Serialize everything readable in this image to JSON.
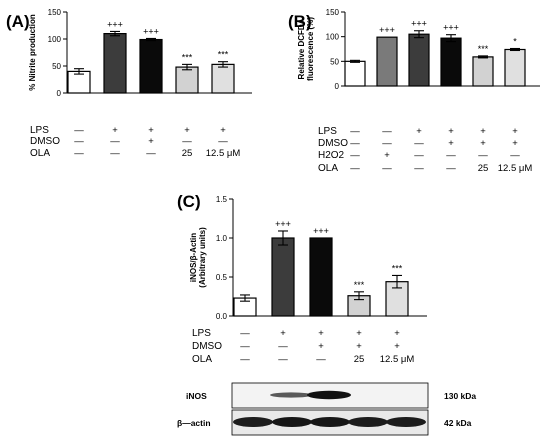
{
  "chart_data": [
    {
      "type": "bar",
      "panel": "(A)",
      "ylabel": "% Nitrite production",
      "ylim": [
        0,
        150
      ],
      "yticks": [
        "0",
        "50",
        "100",
        "150"
      ],
      "fills": [
        "#ffffff",
        "#3c3c3c",
        "#0a0a0a",
        "#d2d2d2",
        "#e0e0e0"
      ],
      "values": [
        40,
        110,
        99,
        48,
        53
      ],
      "errors": [
        5,
        4,
        2,
        5,
        5
      ],
      "significance": [
        "",
        "+++",
        "+++",
        "***",
        "***"
      ],
      "conditions": [
        {
          "label": "LPS",
          "cells": [
            "—",
            "+",
            "+",
            "+",
            "+"
          ]
        },
        {
          "label": "DMSO",
          "cells": [
            "—",
            "—",
            "+",
            "—",
            "—"
          ]
        },
        {
          "label": "OLA",
          "cells": [
            "—",
            "—",
            "—",
            "25",
            "12.5 μM"
          ]
        }
      ]
    },
    {
      "type": "bar",
      "panel": "(B)",
      "ylabel": "Relative DCFDA fluorescence (%)",
      "ylabel_lines": [
        "Relative DCFDA",
        "fluorescence (%)"
      ],
      "ylim": [
        0,
        150
      ],
      "yticks": [
        "0",
        "50",
        "100",
        "150"
      ],
      "fills": [
        "#ffffff",
        "#7a7a7a",
        "#3c3c3c",
        "#0a0a0a",
        "#d2d2d2",
        "#e0e0e0"
      ],
      "values": [
        50,
        99,
        105,
        97,
        59,
        74
      ],
      "errors": [
        2,
        0,
        7,
        7,
        2,
        2
      ],
      "significance": [
        "",
        "+++",
        "+++",
        "+++",
        "***",
        "*"
      ],
      "conditions": [
        {
          "label": "LPS",
          "cells": [
            "—",
            "—",
            "+",
            "+",
            "+",
            "+"
          ]
        },
        {
          "label": "DMSO",
          "cells": [
            "—",
            "—",
            "—",
            "+",
            "+",
            "+"
          ]
        },
        {
          "label": "H2O2",
          "cells": [
            "—",
            "+",
            "—",
            "—",
            "—",
            "—"
          ]
        },
        {
          "label": "OLA",
          "cells": [
            "—",
            "—",
            "—",
            "—",
            "25",
            "12.5 μM"
          ]
        }
      ]
    },
    {
      "type": "bar",
      "panel": "(C)",
      "ylabel": "iNOS/β-Actin (Arbitrary units)",
      "ylabel_lines": [
        "iNOS/β-Actin",
        "(Arbitrary units)"
      ],
      "ylim": [
        0,
        1.5
      ],
      "yticks": [
        "0.0",
        "0.5",
        "1.0",
        "1.5"
      ],
      "fills": [
        "#ffffff",
        "#3c3c3c",
        "#0a0a0a",
        "#d2d2d2",
        "#e0e0e0"
      ],
      "values": [
        0.23,
        1.0,
        1.0,
        0.26,
        0.44
      ],
      "errors": [
        0.04,
        0.09,
        0.0,
        0.05,
        0.08
      ],
      "significance": [
        "",
        "+++",
        "+++",
        "***",
        "***"
      ],
      "conditions": [
        {
          "label": "LPS",
          "cells": [
            "—",
            "+",
            "+",
            "+",
            "+"
          ]
        },
        {
          "label": "DMSO",
          "cells": [
            "—",
            "—",
            "+",
            "+",
            "+"
          ]
        },
        {
          "label": "OLA",
          "cells": [
            "—",
            "—",
            "—",
            "25",
            "12.5 μM"
          ]
        }
      ]
    }
  ],
  "blot": {
    "rows": [
      {
        "label": "iNOS",
        "size": "130 kDa"
      },
      {
        "label": "β—actin",
        "size": "42 kDa"
      }
    ]
  }
}
